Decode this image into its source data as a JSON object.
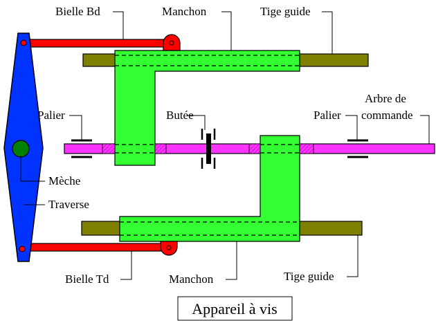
{
  "labels": {
    "bielle_bd": "Bielle Bd",
    "manchon_top": "Manchon",
    "tige_guide_top": "Tige guide",
    "palier_left": "Palier",
    "butee": "Butée",
    "palier_right": "Palier",
    "arbre_line1": "Arbre de",
    "arbre_line2": "commande",
    "meche": "Mèche",
    "traverse": "Traverse",
    "bielle_td": "Bielle Td",
    "manchon_bottom": "Manchon",
    "tige_guide_bottom": "Tige guide"
  },
  "caption": "Appareil à vis",
  "colors": {
    "traverse": "#0033ff",
    "bielle": "#ff0000",
    "manchon": "#33ff33",
    "tige": "#808000",
    "arbre": "#ff33ff",
    "meche": "#008000"
  }
}
